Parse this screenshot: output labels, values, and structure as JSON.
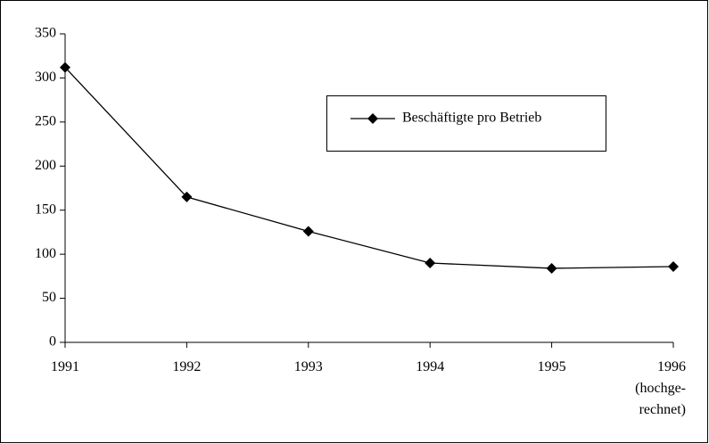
{
  "chart_data": {
    "type": "line",
    "categories": [
      "1991",
      "1992",
      "1993",
      "1994",
      "1995",
      "1996\n(hochge-\nrechnet)"
    ],
    "series": [
      {
        "name": "Beschäftigte pro Betrieb",
        "color": "#000000",
        "values": [
          312,
          165,
          126,
          90,
          84,
          86
        ]
      }
    ],
    "ylim": [
      0,
      350
    ],
    "yticks": [
      0,
      50,
      100,
      150,
      200,
      250,
      300,
      350
    ],
    "grid": false,
    "legend": "upper right"
  }
}
